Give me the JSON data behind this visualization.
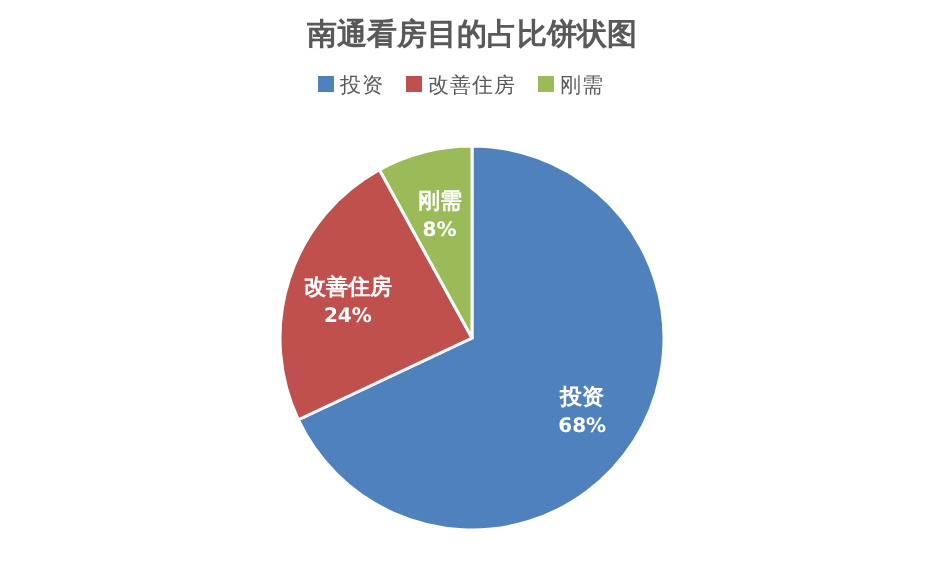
{
  "chart_data": {
    "type": "pie",
    "title": "南通看房目的占比饼状图",
    "categories": [
      "投资",
      "改善住房",
      "刚需"
    ],
    "values": [
      68,
      24,
      8
    ],
    "colors": [
      "#4f81bd",
      "#c0504d",
      "#9bbb59"
    ],
    "value_labels": [
      "68%",
      "24%",
      "8%"
    ],
    "legend": "top"
  }
}
